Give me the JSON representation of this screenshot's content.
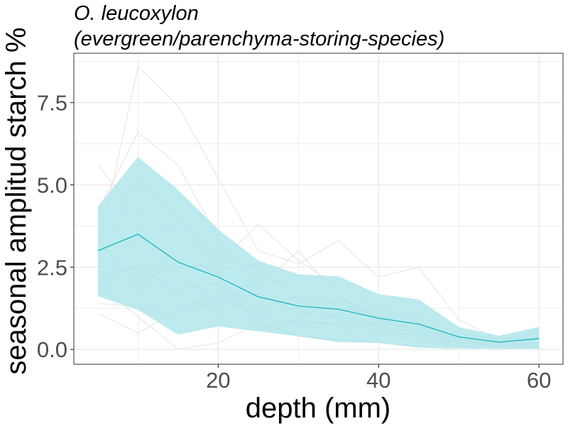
{
  "chart_data": {
    "type": "line",
    "title_line1": "O. leucoxylon",
    "title_line2": "(evergreen/parenchyma-storing-species)",
    "xlabel": "depth (mm)",
    "ylabel": "seasonal amplitud starch %",
    "xlim": [
      2,
      63
    ],
    "ylim": [
      -0.45,
      9.0
    ],
    "x_ticks": [
      20,
      40,
      60
    ],
    "x_tick_labels": [
      "20",
      "40",
      "60"
    ],
    "x_minor_ticks": [
      10,
      30,
      50
    ],
    "y_ticks": [
      0,
      2.5,
      5,
      7.5
    ],
    "y_tick_labels": [
      "0.0",
      "2.5",
      "5.0",
      "7.5"
    ],
    "y_minor_ticks": [
      1.25,
      3.75,
      6.25,
      8.75
    ],
    "grid": true,
    "colors": {
      "mean_line": "#1BB5BF",
      "ribbon": "#A6E3E9",
      "individual": "#E6E6E6",
      "grid": "#EBEBEB",
      "panel_border": "#333333"
    },
    "x": [
      5,
      10,
      15,
      20,
      25,
      30,
      35,
      40,
      45,
      50,
      55,
      60
    ],
    "mean": {
      "values": [
        3.0,
        3.5,
        2.65,
        2.2,
        1.6,
        1.32,
        1.22,
        0.95,
        0.77,
        0.38,
        0.22,
        0.33
      ]
    },
    "ribbon": {
      "upper": [
        4.35,
        5.85,
        4.85,
        3.65,
        2.7,
        2.28,
        2.22,
        1.68,
        1.52,
        0.68,
        0.42,
        0.68
      ],
      "lower": [
        1.62,
        1.2,
        0.45,
        0.7,
        0.55,
        0.4,
        0.22,
        0.2,
        0.05,
        0.03,
        0.02,
        0.02
      ]
    },
    "individual_series": [
      {
        "values": [
          3.0,
          8.6,
          7.4,
          5.2,
          3.0,
          2.6,
          3.3,
          2.2,
          2.5,
          0.9,
          0.3,
          0.5
        ]
      },
      {
        "values": [
          5.6,
          4.1,
          3.6,
          2.6,
          3.8,
          2.7,
          1.9,
          1.3,
          0.8,
          0.4,
          0.2,
          0.3
        ]
      },
      {
        "values": [
          4.2,
          6.6,
          5.6,
          3.4,
          1.9,
          3.0,
          1.6,
          0.9,
          0.6,
          0.3,
          0.1,
          0.2
        ]
      },
      {
        "values": [
          2.5,
          5.2,
          4.0,
          2.8,
          2.5,
          1.5,
          1.4,
          1.1,
          1.0,
          0.5,
          0.3,
          0.4
        ]
      },
      {
        "values": [
          2.2,
          2.5,
          1.8,
          2.0,
          1.3,
          1.6,
          0.9,
          0.7,
          0.5,
          0.2,
          0.1,
          0.2
        ]
      },
      {
        "values": [
          1.6,
          3.5,
          2.2,
          1.5,
          1.7,
          1.1,
          1.0,
          0.8,
          0.6,
          0.2,
          0.2,
          0.3
        ]
      },
      {
        "values": [
          1.1,
          0.5,
          1.2,
          1.6,
          1.0,
          0.7,
          0.6,
          0.5,
          0.3,
          0.1,
          0.1,
          0.1
        ]
      },
      {
        "values": [
          2.0,
          1.0,
          0.0,
          0.2,
          0.8,
          0.4,
          0.3,
          0.2,
          0.1,
          0.0,
          0.0,
          0.1
        ]
      },
      {
        "values": [
          3.4,
          1.8,
          2.9,
          2.3,
          0.6,
          0.9,
          1.6,
          1.0,
          0.9,
          0.3,
          0.2,
          0.2
        ]
      },
      {
        "values": [
          1.4,
          1.3,
          1.0,
          1.5,
          1.1,
          0.8,
          0.8,
          0.6,
          0.4,
          0.1,
          0.1,
          0.2
        ]
      },
      {
        "values": [
          2.8,
          2.2,
          1.6,
          1.2,
          2.2,
          1.9,
          1.3,
          1.0,
          0.7,
          0.3,
          0.1,
          0.2
        ]
      }
    ]
  }
}
